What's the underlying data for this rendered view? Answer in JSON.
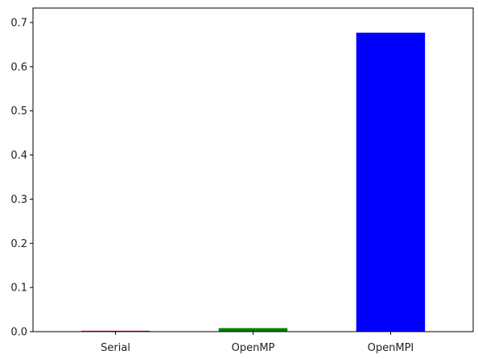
{
  "chart_data": {
    "type": "bar",
    "title": "",
    "xlabel": "",
    "ylabel": "",
    "categories": [
      "Serial",
      "OpenMP",
      "OpenMPI"
    ],
    "values": [
      0.002,
      0.008,
      0.677
    ],
    "colors": [
      "#ff0000",
      "#008000",
      "#0000ff"
    ],
    "ylim": [
      0,
      0.7
    ],
    "yticks": [
      0.0,
      0.1,
      0.2,
      0.3,
      0.4,
      0.5,
      0.6,
      0.7
    ],
    "ytick_labels": [
      "0.0",
      "0.1",
      "0.2",
      "0.3",
      "0.4",
      "0.5",
      "0.6",
      "0.7"
    ],
    "grid": false,
    "legend": "none"
  }
}
